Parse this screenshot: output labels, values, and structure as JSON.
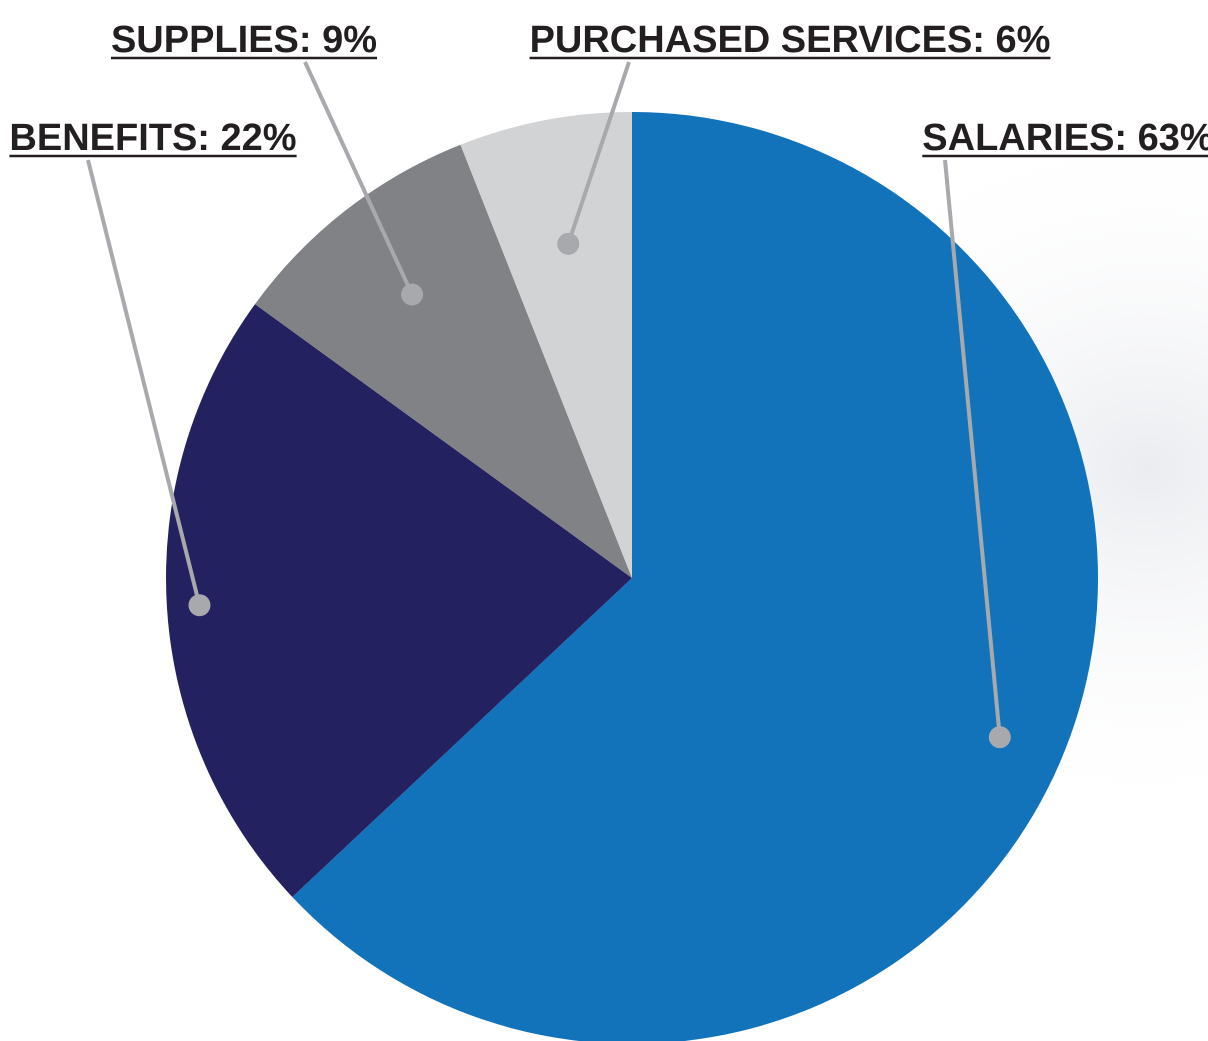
{
  "chart_data": {
    "type": "pie",
    "start_angle_deg": 0,
    "direction": "clockwise",
    "slices": [
      {
        "key": "salaries",
        "label": "SALARIES: 63%",
        "value": 63,
        "color": "#1273bb"
      },
      {
        "key": "benefits",
        "label": "BENEFITS: 22%",
        "value": 22,
        "color": "#242161"
      },
      {
        "key": "supplies",
        "label": "SUPPLIES: 9%",
        "value": 9,
        "color": "#808285"
      },
      {
        "key": "purchased-services",
        "label": "PURCHASED SERVICES: 6%",
        "value": 6,
        "color": "#d1d3d4"
      }
    ],
    "leader_color": "#a7a9ac",
    "label_color": "#231f20"
  }
}
